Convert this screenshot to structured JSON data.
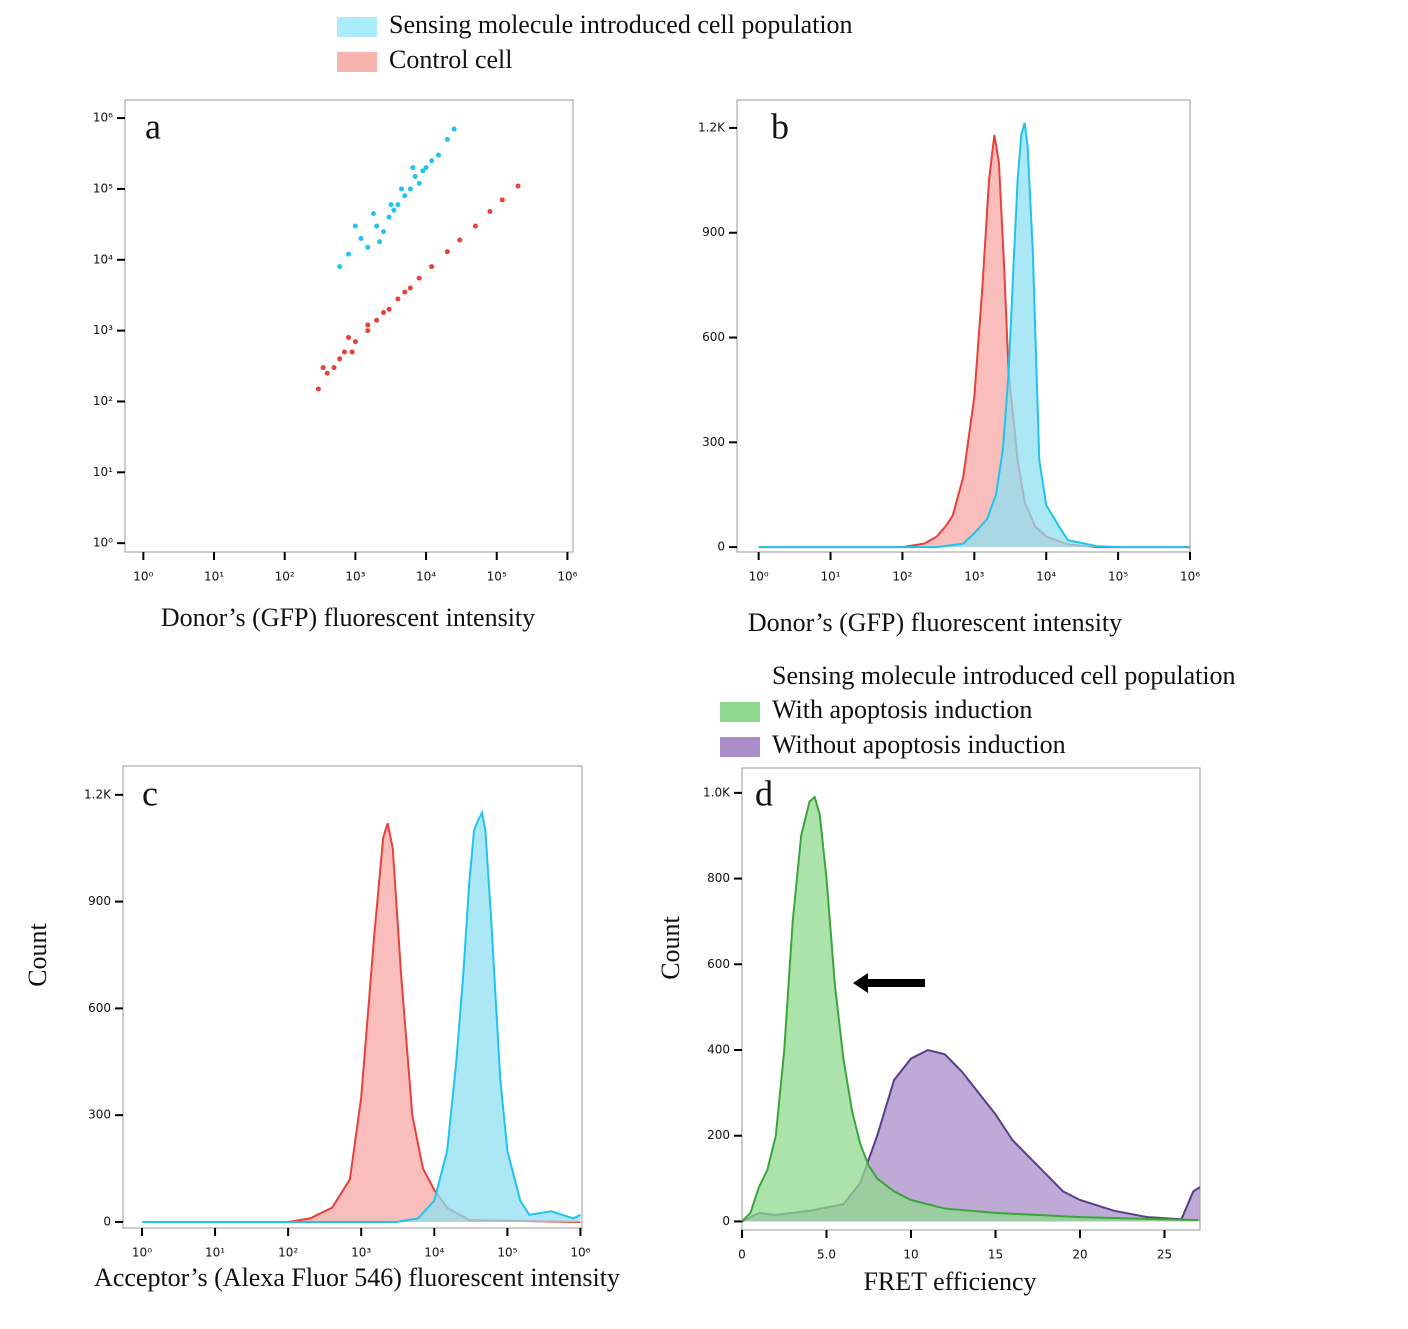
{
  "chart_data": [
    {
      "type": "scatter",
      "label": "a",
      "xlabel": "Donor’s (GFP) fluorescent intensity",
      "xscale": "log",
      "yscale": "log",
      "xlim": [
        0.55,
        1200000
      ],
      "ylim": [
        0.75,
        1800000
      ],
      "xticks": [
        {
          "value": 1,
          "label": "10⁰"
        },
        {
          "value": 10,
          "label": "10¹"
        },
        {
          "value": 100,
          "label": "10²"
        },
        {
          "value": 1000,
          "label": "10³"
        },
        {
          "value": 10000,
          "label": "10⁴"
        },
        {
          "value": 100000,
          "label": "10⁵"
        },
        {
          "value": 1000000,
          "label": "10⁶"
        }
      ],
      "yticks": [
        {
          "value": 1,
          "label": "10⁰"
        },
        {
          "value": 10,
          "label": "10¹"
        },
        {
          "value": 100,
          "label": "10²"
        },
        {
          "value": 1000,
          "label": "10³"
        },
        {
          "value": 10000,
          "label": "10⁴"
        },
        {
          "value": 100000,
          "label": "10⁵"
        },
        {
          "value": 1000000,
          "label": "10⁶"
        }
      ],
      "series": [
        {
          "name": "Sensing molecule introduced cell population",
          "color": "#22c4ee",
          "legend_color": "#a9ecfb",
          "x": [
            800,
            1200,
            1500,
            2000,
            2500,
            3000,
            3500,
            4000,
            5000,
            6000,
            7000,
            8000,
            10000,
            12000,
            15000,
            20000,
            25000,
            1000,
            2200,
            3200,
            4500,
            6500,
            9000,
            1800,
            600
          ],
          "values": [
            12000,
            20000,
            15000,
            30000,
            25000,
            40000,
            50000,
            60000,
            80000,
            100000,
            150000,
            120000,
            200000,
            250000,
            300000,
            500000,
            700000,
            30000,
            18000,
            60000,
            100000,
            200000,
            180000,
            45000,
            8000
          ]
        },
        {
          "name": "Control cell",
          "color": "#e8403a",
          "legend_color": "#f7b3ae",
          "x": [
            300,
            400,
            500,
            700,
            1000,
            1500,
            2000,
            3000,
            4000,
            6000,
            8000,
            12000,
            20000,
            30000,
            50000,
            80000,
            120000,
            200000,
            600,
            900,
            2500,
            5000,
            350,
            800,
            1500
          ],
          "values": [
            150,
            250,
            300,
            500,
            700,
            1000,
            1400,
            2000,
            2800,
            4000,
            5500,
            8000,
            13000,
            19000,
            30000,
            48000,
            70000,
            110000,
            400,
            500,
            1800,
            3500,
            300,
            800,
            1200
          ]
        }
      ]
    },
    {
      "type": "area",
      "label": "b",
      "xlabel": "Donor’s (GFP) fluorescent intensity",
      "xscale": "log",
      "xlim": [
        0.5,
        1000000
      ],
      "ylim": [
        -14,
        1280
      ],
      "xticks": [
        {
          "value": 1,
          "label": "10⁰"
        },
        {
          "value": 10,
          "label": "10¹"
        },
        {
          "value": 100,
          "label": "10²"
        },
        {
          "value": 1000,
          "label": "10³"
        },
        {
          "value": 10000,
          "label": "10⁴"
        },
        {
          "value": 100000,
          "label": "10⁵"
        },
        {
          "value": 1000000,
          "label": "10⁶"
        }
      ],
      "yticks": [
        0,
        300,
        600,
        900,
        {
          "value": 1200,
          "label": "1.2K"
        }
      ],
      "series": [
        {
          "color": "#e8403a",
          "fill": "#f7a8a6",
          "x": [
            1,
            100,
            200,
            300,
            400,
            500,
            700,
            1000,
            1300,
            1600,
            1900,
            2200,
            2600,
            3000,
            4000,
            5000,
            7000,
            10000,
            20000,
            50000,
            1000000
          ],
          "values": [
            0,
            0,
            10,
            30,
            60,
            90,
            200,
            430,
            750,
            1050,
            1180,
            1100,
            800,
            500,
            250,
            130,
            60,
            30,
            8,
            0,
            0
          ]
        },
        {
          "color": "#1fc4ee",
          "fill": "#8fdff2",
          "x": [
            1,
            300,
            700,
            1000,
            1500,
            2000,
            2500,
            3000,
            3500,
            4000,
            4500,
            5000,
            5500,
            6500,
            8000,
            10000,
            15000,
            20000,
            50000,
            100000,
            1000000
          ],
          "values": [
            0,
            0,
            10,
            40,
            80,
            150,
            280,
            500,
            800,
            1050,
            1180,
            1215,
            1150,
            850,
            250,
            120,
            60,
            20,
            3,
            0,
            0
          ]
        }
      ]
    },
    {
      "type": "area",
      "label": "c",
      "xlabel": "Acceptor’s (Alexa Fluor 546) fluorescent intensity",
      "ylabel": "Count",
      "xscale": "log",
      "xlim": [
        0.55,
        1050000
      ],
      "ylim": [
        -17,
        1281
      ],
      "xticks": [
        {
          "value": 1,
          "label": "10⁰"
        },
        {
          "value": 10,
          "label": "10¹"
        },
        {
          "value": 100,
          "label": "10²"
        },
        {
          "value": 1000,
          "label": "10³"
        },
        {
          "value": 10000,
          "label": "10⁴"
        },
        {
          "value": 100000,
          "label": "10⁵"
        },
        {
          "value": 1000000,
          "label": "10⁶"
        }
      ],
      "yticks": [
        0,
        300,
        600,
        900,
        {
          "value": 1200,
          "label": "1.2K"
        }
      ],
      "series": [
        {
          "color": "#e8403a",
          "fill": "#f7a8a6",
          "x": [
            1,
            100,
            200,
            400,
            700,
            1000,
            1500,
            2000,
            2300,
            2700,
            3500,
            5000,
            7000,
            10000,
            15000,
            30000,
            1000000
          ],
          "values": [
            0,
            0,
            10,
            40,
            120,
            350,
            800,
            1080,
            1120,
            1050,
            700,
            300,
            150,
            90,
            40,
            5,
            0
          ]
        },
        {
          "color": "#1fc4ee",
          "fill": "#8fdff2",
          "x": [
            1,
            3000,
            6000,
            10000,
            15000,
            20000,
            25000,
            30000,
            35000,
            40000,
            45000,
            50000,
            60000,
            80000,
            100000,
            150000,
            200000,
            400000,
            800000,
            1000000
          ],
          "values": [
            0,
            0,
            10,
            60,
            200,
            450,
            700,
            950,
            1100,
            1130,
            1150,
            1100,
            850,
            400,
            200,
            60,
            20,
            30,
            10,
            20
          ]
        }
      ]
    },
    {
      "type": "area",
      "label": "d",
      "xlabel": "FRET efficiency",
      "ylabel": "Count",
      "legend_title": "Sensing molecule introduced cell population",
      "xlim": [
        0,
        27.1
      ],
      "ylim": [
        -20,
        1058
      ],
      "xticks": [
        0,
        {
          "value": 5,
          "label": "5.0"
        },
        10,
        15,
        20,
        25
      ],
      "yticks": [
        0,
        200,
        400,
        600,
        800,
        {
          "value": 1000,
          "label": "1.0K"
        }
      ],
      "series": [
        {
          "name": "Without apoptosis induction",
          "color": "#5a3d8a",
          "fill": "#a98cc8",
          "x": [
            0,
            1,
            2,
            4,
            6,
            7,
            8,
            9,
            10,
            11,
            12,
            13,
            14,
            15,
            16,
            17,
            18,
            19,
            20,
            22,
            24,
            26,
            26.7,
            27.1
          ],
          "values": [
            0,
            20,
            15,
            25,
            40,
            90,
            200,
            330,
            380,
            400,
            390,
            350,
            300,
            250,
            190,
            150,
            110,
            70,
            50,
            25,
            10,
            5,
            70,
            80
          ]
        },
        {
          "name": "With apoptosis induction",
          "color": "#3aa63a",
          "fill": "#8fd98f",
          "x": [
            0,
            0.5,
            1,
            1.5,
            2,
            2.5,
            3,
            3.5,
            4,
            4.3,
            4.6,
            5,
            5.5,
            6,
            6.5,
            7,
            7.5,
            8,
            9,
            10,
            12,
            15,
            20,
            25,
            27
          ],
          "values": [
            0,
            20,
            80,
            120,
            200,
            400,
            700,
            900,
            980,
            990,
            950,
            800,
            550,
            380,
            260,
            180,
            130,
            100,
            70,
            50,
            30,
            20,
            10,
            5,
            3
          ]
        }
      ]
    }
  ]
}
